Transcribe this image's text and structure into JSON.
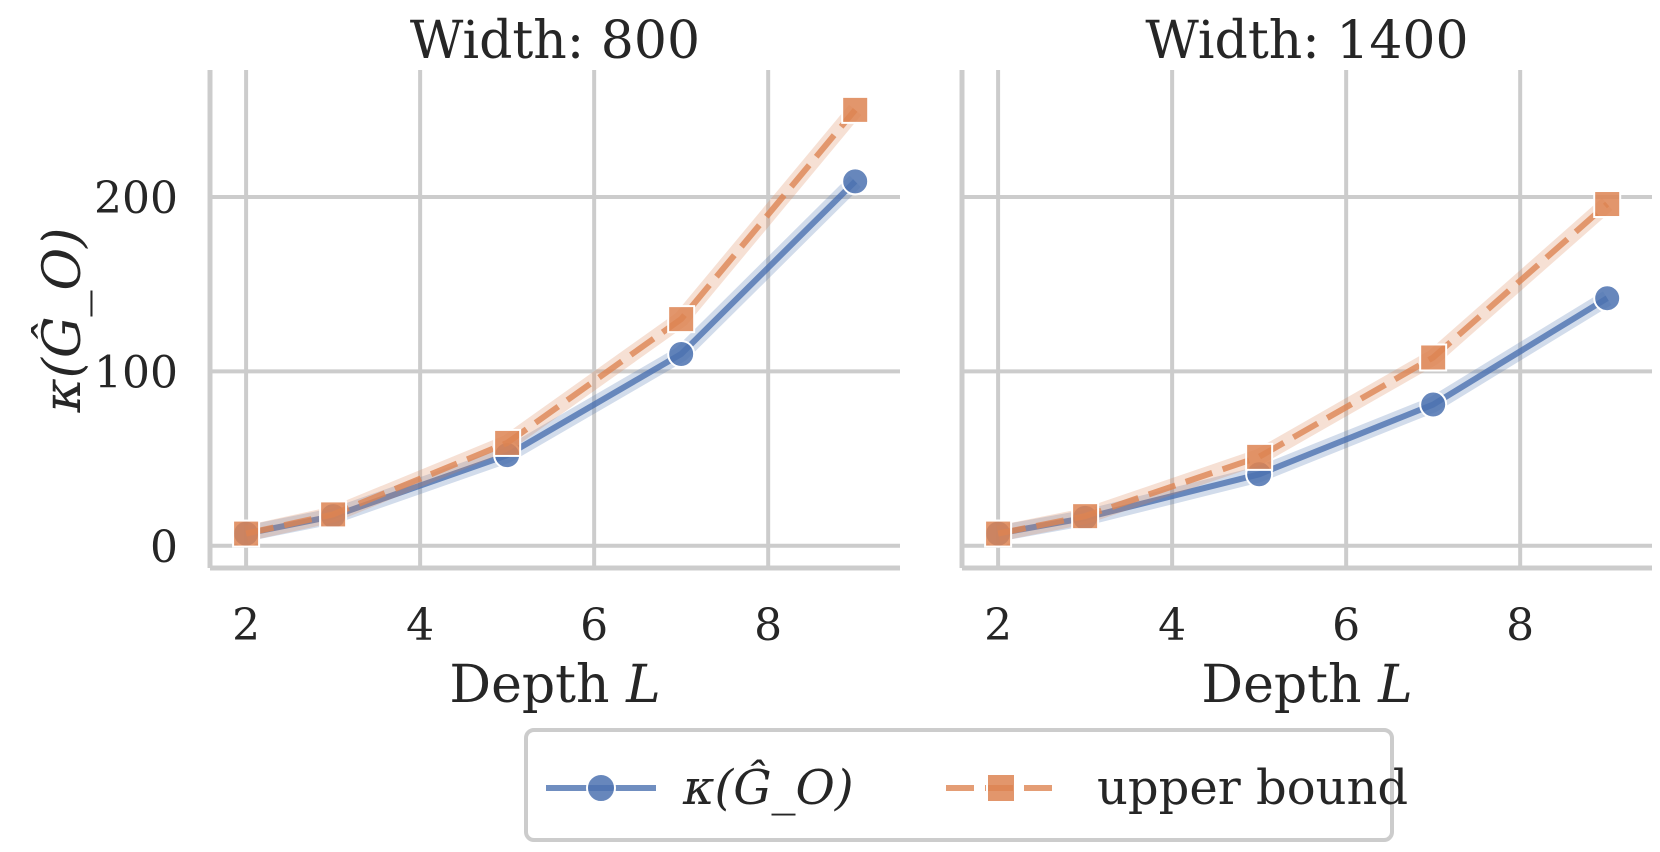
{
  "chart_data": [
    {
      "type": "line",
      "title": "Width: 800",
      "xlabel": "Depth L",
      "ylabel": "κ(Ĝ_O)",
      "x_ticks": [
        2,
        4,
        6,
        8
      ],
      "y_ticks": [
        0,
        100,
        200
      ],
      "xlim": [
        1.7,
        9.4
      ],
      "ylim": [
        -7,
        270
      ],
      "grid": true,
      "series": [
        {
          "name": "κ(Ĝ_O)",
          "marker": "circle",
          "linestyle": "solid",
          "color": "#4c72b0",
          "x": [
            2,
            3,
            5,
            7,
            9
          ],
          "values": [
            7,
            17,
            52,
            110,
            209
          ]
        },
        {
          "name": "upper bound",
          "marker": "square",
          "linestyle": "dashed",
          "color": "#dd8452",
          "x": [
            2,
            3,
            5,
            7,
            9
          ],
          "values": [
            7,
            18,
            59,
            130,
            250
          ]
        }
      ]
    },
    {
      "type": "line",
      "title": "Width: 1400",
      "xlabel": "Depth L",
      "ylabel": "",
      "x_ticks": [
        2,
        4,
        6,
        8
      ],
      "y_ticks": [
        0,
        100,
        200
      ],
      "xlim": [
        1.7,
        9.4
      ],
      "ylim": [
        -7,
        270
      ],
      "grid": true,
      "series": [
        {
          "name": "κ(Ĝ_O)",
          "marker": "circle",
          "linestyle": "solid",
          "color": "#4c72b0",
          "x": [
            2,
            3,
            5,
            7,
            9
          ],
          "values": [
            7,
            16,
            41,
            81,
            142
          ]
        },
        {
          "name": "upper bound",
          "marker": "square",
          "linestyle": "dashed",
          "color": "#dd8452",
          "x": [
            2,
            3,
            5,
            7,
            9
          ],
          "values": [
            7,
            17,
            51,
            108,
            196
          ]
        }
      ]
    }
  ],
  "legend": {
    "placement": "bottom-center",
    "entries": [
      {
        "label": "κ(Ĝ_O)",
        "marker": "circle",
        "linestyle": "solid",
        "color": "#4c72b0"
      },
      {
        "label": "upper bound",
        "marker": "square",
        "linestyle": "dashed",
        "color": "#dd8452"
      }
    ]
  },
  "colors": {
    "grid": "#cccccc",
    "axis": "#cccccc",
    "text": "#262626"
  }
}
